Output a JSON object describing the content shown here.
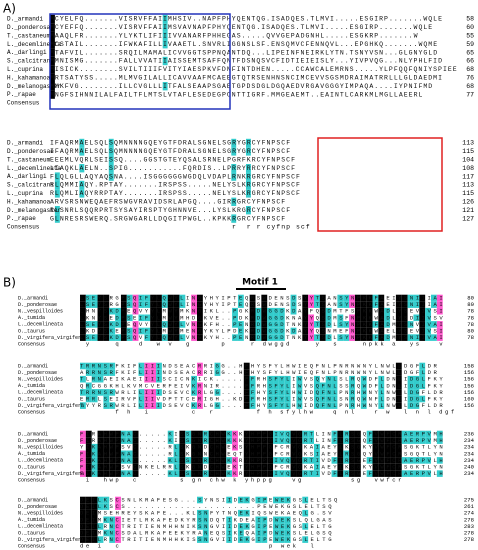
{
  "panels": [
    {
      "label": "A)",
      "blocks": [
        {
          "rows": [
            {
              "name": "D._armandi",
              "seq": "MCYELFQ.......VISRVFFAIIMHSIV..NAPFPHYQENTQG.ISADQES.TLMVI.....ESGIRP.......WQLE",
              "end": 58
            },
            {
              "name": "D._ponderosae",
              "seq": "MCYEFFQ.......VISRVFFAIIMSVAVNAPFPHYQENTQG.ISADQES.TLMVI.....ESGIRP.......WQLE",
              "end": 60
            },
            {
              "name": "T._castaneum",
              "seq": "MAAQLFR.......YLYKTLIFIIIVVANARFPHHEGAS.....QVVGEPADGNHL.....ESGKRP.......W",
              "end": 55
            },
            {
              "name": "L._decemlineata",
              "seq": "MCSTAIL.......IFWKAFILLIVAAETL.SNVRLIGGNSLSF.ENSQMVCFENNQVL...EPGHKQ.......WQME",
              "end": 59
            },
            {
              "name": "A._darlingi",
              "seq": "MTAFVIL.......SRQILMAMALICVVGGTSPPNQANTDQ...LIPEINFNEIRKLYTN.TSNYVSN...GLGNYGLD",
              "end": 65
            },
            {
              "name": "S._calcitrans",
              "seq": "MMNISMG.......FALLVVATIIAISSEMTSAFFQNTFDSNQSVCFIDTIEIEISLY...YIVPVQG...NLYPHLFID",
              "end": 66
            },
            {
              "name": "L._cuprina",
              "seq": "MISICK........SVILTIIIFVITYIAESPKVFDNFINTDHEN.....CCAWCALEMRNS.....YLPFQQFQNIYSPIEE",
              "end": 68
            },
            {
              "name": "H._kahamanoa",
              "seq": "MRTSATYSS.....MLMVGILALLICAVVAAFMCAEEGTQTRSENHNSNCIMCEVVSGSMDRAIMATRRLLLGLDAEDMI",
              "end": 76
            },
            {
              "name": "D._melanogaster",
              "seq": "MMKFVG........ILLCVGLLLITFALSEAAPSGAETGPDSDGLDGQAEDVRGAVGGGYIMPAQA....IYPNIFMD",
              "end": 68
            },
            {
              "name": "P._rapae",
              "seq": "MNGFSIHNNILALFAILTFLMTSLVTAFLESEDEGPCNTTIGRF.MMGEAEMT..EAINTLCARKMLMGLLAEERL",
              "end": 77
            }
          ],
          "consensus": {
            "name": "Consensus"
          }
        },
        {
          "rows": [
            {
              "name": "D._armandi",
              "seq": "IFAQRMAELSQLSQMNNNNGQEYGTFDRALSGNELSGRYGRCYFNPSCF",
              "end": 113
            },
            {
              "name": "D._ponderosae",
              "seq": "IFAQRMAELSQLSQMNNNNGQEYGTFDRALSGNELSGRYGRCYFNPSCF",
              "end": 115
            },
            {
              "name": "T._castaneum",
              "seq": "EEEMLVQRLSEISSQ....GGSTGTEYQSALSRNELPGRFKRCYFNPSCF",
              "end": 104
            },
            {
              "name": "L._decemlineata",
              "seq": "LIAQKLAELN..SPIG...........FQRDIS..LPRRYRRCYFNPSCF",
              "end": 108
            },
            {
              "name": "A._darlingi",
              "seq": "FLQLGLLAQYAQSNA....ISGGGGGGWGDQLVDAPLRNKRGRCYFNPSCF",
              "end": 117
            },
            {
              "name": "S._calcitrans",
              "seq": "RLQMMIAQY.RPTAY.......IRSPSS.....NELYSLKRGRCYFNPSCF",
              "end": 113
            },
            {
              "name": "L._cuprina",
              "seq": "RLQMLIAQYRRPTAY.......IRSPSS.....NELYSLKRGRCYFNPSCF",
              "end": 115
            },
            {
              "name": "H._kahamanoa",
              "seq": "ARVSRSNWEQAEFRSWGVRAVIDSRLAPGQ....GIRRGRCYFNPSCF",
              "end": 126
            },
            {
              "name": "D._melanogaster",
              "seq": "RLSNRLSQQRPRTSYSAYIRSPTYGHNNVE...LYSLKRGRCYFNPSCF",
              "end": 121
            },
            {
              "name": "P._rapae",
              "seq": "GLNRESRSWERQ.SRGWGARLLDQGITPWGL..KPKKRGRCYFNPSCF",
              "end": 127
            }
          ],
          "consensus": {
            "name": "Consensus",
            "seq": "                                     r  r r cyfnp scf"
          }
        }
      ]
    },
    {
      "label": "B)",
      "motif": "Motif 1",
      "blocks": [
        {
          "rows": [
            {
              "name": "D._armandi",
              "seq": "LSEYSRGPSQIFYLQWYLINGYHYIPTEQRSWDENSDSYYTSANSYNPKKFAEIYSNIIIAI",
              "end": 80
            },
            {
              "name": "D._ponderosae",
              "seq": "LSEYSRGPSQIFYLQWYLINGYHYIPTEQRSWDENSDSYYTSANSYNPKKFAEIYSNIIIAI",
              "end": 80
            },
            {
              "name": "N._vespilloides",
              "seq": "LHNYSKDPEQVYYLMWYMKNGIKL..PGKRDWGGDKDAYFQSDMTFSPKKWADLYSEVIVSI",
              "end": 78
            },
            {
              "name": "A._tumida",
              "seq": "LKNYSEDPSEIFYLMWYMHDGKVE..PDKRDWGGDKNAYYQSDMSFNPKKWADLYSDIIVSV",
              "end": 78
            },
            {
              "name": "L._decemlineata",
              "seq": "LSEYSKDPEQVYYLQWYLVNGKFH..PENRDWGGDTNKYYTSDLSYNPKKFADMYSNVIVAI",
              "end": 78
            },
            {
              "name": "O._taurus",
              "seq": "LKDYSKEPSQIFYLMWYMENGYKYLPDEKRDWGGDKDAYYQSNMEFNPKKWAELYSEVIVSI",
              "end": 80
            },
            {
              "name": "D._virgifera_virgifera",
              "seq": "LSEYSKDPSQVFYLQWYLVNGKYH..PENRDWGGDTNKYYTSDLSYNPKKFADMYSNIIVAI",
              "end": 78
            }
          ],
          "consensus": {
            "name": "Consensus",
            "seq": " y    q   d  w v  g     p    r dwggd    y  s    npkk a  ys   v "
          }
        },
        {
          "rows": [
            {
              "name": "D._armandi",
              "seq": "TRRNSRFKIFLIIINDSEACRRIGG..HFHYSFYLHWIEQFNLPNRNWNYLNWLLDGFLDR",
              "end": 158
            },
            {
              "name": "D._ponderosae",
              "seq": "ARRNSRFKIFLIIINDSEACRRIGG..HFHYSFYLHWIEQFNLPNRNWNYLNWLLDGFLDR",
              "end": 156
            },
            {
              "name": "N._vespilloides",
              "seq": "TLRNAEIKAEIIIISCICNKICK.....FFRHSFYLIWVSQYNLSLRQWDFLDNLIDGLFKY",
              "end": 156
            },
            {
              "name": "A._tumida",
              "seq": "QRCGGKHLKVMCVERFEIVKRNIR....FFRHSFYLIWVSQFNLSSRQWDFLDNLIDGLFKY",
              "end": 156
            },
            {
              "name": "L._decemlineata",
              "seq": "TRRNSRWRLILIIIDSEVCKRLGG....FFHYSFYLHWIDQFNLPNRHWNYLNWLLDGFLDR",
              "end": 156
            },
            {
              "name": "O._taurus",
              "seq": "ERRLSEIRVFLIIVDPTTCERIGH..KDFFRHSFYLIWVSQFNLSNRQWNFLDNLIDGLFKY",
              "end": 160
            },
            {
              "name": "D._virgifera_virgifera",
              "seq": "TYYRSRWRLILIIIDSEVCKRLGG....FFHYSFYLHWIDQFNLPNRHWNYLNWLLDGFLDR",
              "end": 156
            }
          ],
          "consensus": {
            "name": "Consensus",
            "seq": "      f h  i       c  r       f h sfylhw   q nl   r w  l n l dgf   "
          }
        },
        {
          "rows": [
            {
              "name": "D._armandi",
              "seq": "FIRAHWPNAC.....KISSGNRCHWKKKYHPPGIVQVGRTLINFLRSGQFVWFCRAERPVMH",
              "end": 236
            },
            {
              "name": "D._ponderosae",
              "seq": "FIRAHWPNAC.....KISSGNRCHWKKKYHPPGIVQVGRTLINFLRSGQFVWFCRAERPVMH",
              "end": 234
            },
            {
              "name": "N._vespilloides",
              "seq": "YIKAHWPSVC.....RLSKGNDCHWEKSYHPPGFCRVGKAIAEYLKSGKYVWFCRSGKTLYN",
              "end": 234
            },
            {
              "name": "A._tumida",
              "seq": "FIKAHWPNAC.....RLSKGNNCHWEQTYHPPGFCRVGKSIAEYLRSGQYVWFCRSGQTLYN",
              "end": 234
            },
            {
              "name": "L._decemlineata",
              "seq": "FIKAHWPNAC.....KLSSGNRCHWKKRYHPPGIVQVGRTIVDFLRSGEFVWFCRAERPVLH",
              "end": 234
            },
            {
              "name": "O._taurus",
              "seq": "FIKAHWPSVCNKELRRLSKGNDCHWEKTYHPPGFCRVGKAIAEYLKSGKYVWFCRSGKTLYN",
              "end": 240
            },
            {
              "name": "D._virgifera_virgifera",
              "seq": "FIKAHWPNAC.....KLSSGNRCHWKKRYHPPGIVQVGRTIVDFLRSGEFVWFCRAERPVLH",
              "end": 234
            }
          ],
          "consensus": {
            "name": "Consensus",
            "seq": " i  hwp  c       s gn chw k yhppg   vg        sg  vwfcr       "
          }
        },
        {
          "rows": [
            {
              "name": "D._armandi",
              "seq": "DEILKSCSNLKRAFESG...SYNSIIDEKGIPEWEKGSLELTSQ",
              "end": 275
            },
            {
              "name": "D._ponderosae",
              "seq": "DEILKSCS......................PEWEKGSLELTSQ",
              "end": 261
            },
            {
              "name": "N._vespilloides",
              "seq": "DEIMSEHREYSKAFE...KLSNFYTNQEKIQSWEKAEQLG.SV",
              "end": 274
            },
            {
              "name": "A._tumida",
              "seq": "DEIMKNCIETLRKAFEDKYRSNDQTIKDEAIPDWEKSLQLGAS",
              "end": 278
            },
            {
              "name": "L._decemlineata",
              "seq": "DEILRNCTRITIENMHHNIKSNGVIIDEKGIPEWEKGSLELTG",
              "end": 283
            },
            {
              "name": "O._taurus",
              "seq": "DEIMKNCSDALRKAFEEKYRANEQSIKEQAIPDWEKSLELGSQ",
              "end": 278
            },
            {
              "name": "D._virgifera_virgifera",
              "seq": "DEILRNCTRITIENMHHKISSNGVIIDEKGIPEWEKGSLELTG",
              "end": 278
            }
          ],
          "consensus": {
            "name": "Consensus",
            "seq": "de i  c                         p wek  l    "
          }
        }
      ]
    }
  ]
}
